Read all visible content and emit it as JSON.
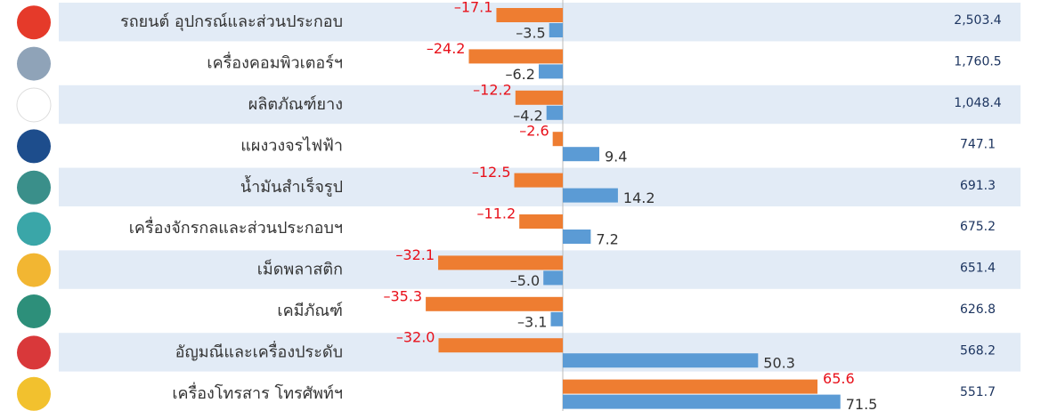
{
  "chart_data": {
    "type": "bar",
    "orientation": "horizontal",
    "categories": [
      "รถยนต์ อุปกรณ์และส่วนประกอบ",
      "เครื่องคอมพิวเตอร์ฯ",
      "ผลิตภัณฑ์ยาง",
      "แผงวงจรไฟฟ้า",
      "น้ำมันสำเร็จรูป",
      "เครื่องจักรกลและส่วนประกอบฯ",
      "เม็ดพลาสติก",
      "เคมีภัณฑ์",
      "อัญมณีและเครื่องประดับ",
      "เครื่องโทรสาร โทรศัพท์ฯ"
    ],
    "series": [
      {
        "color": "#ee7d31",
        "label_color": "#e8101a",
        "values": [
          -17.1,
          -24.2,
          -12.2,
          -2.6,
          -12.5,
          -11.2,
          -32.1,
          -35.3,
          -32.0,
          65.6
        ],
        "value_labels": [
          "–17.1",
          "–24.2",
          "–12.2",
          "–2.6",
          "–12.5",
          "–11.2",
          "–32.1",
          "–35.3",
          "–32.0",
          "65.6"
        ]
      },
      {
        "color": "#5b9bd5",
        "label_color": "#333333",
        "values": [
          -3.5,
          -6.2,
          -4.2,
          9.4,
          14.2,
          7.2,
          -5.0,
          -3.1,
          50.3,
          71.5
        ],
        "value_labels": [
          "–3.5",
          "–6.2",
          "–4.2",
          "9.4",
          "14.2",
          "7.2",
          "–5.0",
          "–3.1",
          "50.3",
          "71.5"
        ]
      }
    ],
    "totals": [
      "2,503.4",
      "1,760.5",
      "1,048.4",
      "747.1",
      "691.3",
      "675.2",
      "651.4",
      "626.8",
      "568.2",
      "551.7"
    ],
    "xlim": [
      -40,
      80
    ]
  }
}
